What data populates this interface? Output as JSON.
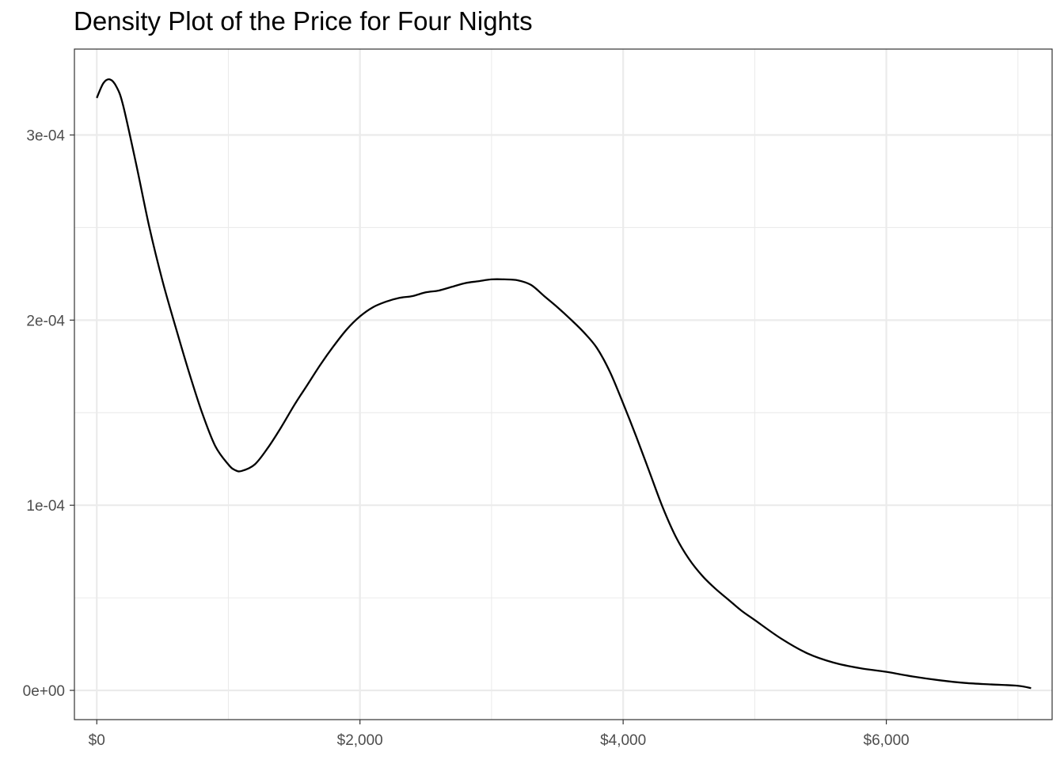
{
  "chart_data": {
    "type": "line",
    "title": "Density Plot of the Price for Four Nights",
    "xlabel": "",
    "ylabel": "",
    "xlim": [
      -170,
      7260
    ],
    "ylim": [
      -1.58e-05,
      0.0003464
    ],
    "x_ticks": [
      {
        "value": 0,
        "label": "$0"
      },
      {
        "value": 2000,
        "label": "$2,000"
      },
      {
        "value": 4000,
        "label": "$4,000"
      },
      {
        "value": 6000,
        "label": "$6,000"
      }
    ],
    "x_minor_ticks": [
      1000,
      3000,
      5000,
      7000
    ],
    "y_ticks": [
      {
        "value": 0,
        "label": "0e+00"
      },
      {
        "value": 0.0001,
        "label": "1e-04"
      },
      {
        "value": 0.0002,
        "label": "2e-04"
      },
      {
        "value": 0.0003,
        "label": "3e-04"
      }
    ],
    "y_minor_ticks": [
      5e-05,
      0.00015,
      0.00025
    ],
    "grid": true,
    "line_color": "#000000",
    "grid_color": "#ebebeb",
    "series": [
      {
        "x": [
          0,
          50,
          100,
          150,
          200,
          300,
          400,
          500,
          600,
          700,
          800,
          900,
          1000,
          1050,
          1100,
          1200,
          1300,
          1400,
          1500,
          1600,
          1700,
          1800,
          1900,
          2000,
          2100,
          2200,
          2300,
          2400,
          2500,
          2600,
          2700,
          2800,
          2900,
          3000,
          3100,
          3200,
          3300,
          3400,
          3500,
          3600,
          3700,
          3800,
          3900,
          4000,
          4100,
          4200,
          4300,
          4400,
          4500,
          4600,
          4700,
          4800,
          4900,
          5000,
          5200,
          5400,
          5600,
          5800,
          6000,
          6200,
          6400,
          6600,
          6800,
          7000,
          7100
        ],
        "y": [
          0.00032,
          0.000328,
          0.00033,
          0.000326,
          0.000316,
          0.000284,
          0.00025,
          0.000221,
          0.000196,
          0.000172,
          0.00015,
          0.000132,
          0.000122,
          0.000119,
          0.0001185,
          0.000122,
          0.000131,
          0.000142,
          0.000154,
          0.000165,
          0.000176,
          0.000186,
          0.000195,
          0.000202,
          0.000207,
          0.00021,
          0.000212,
          0.000213,
          0.000215,
          0.000216,
          0.000218,
          0.00022,
          0.000221,
          0.000222,
          0.000222,
          0.0002215,
          0.000219,
          0.000213,
          0.000207,
          0.0002005,
          0.0001935,
          0.000185,
          0.000172,
          0.000155,
          0.000137,
          0.000118,
          9.9e-05,
          8.3e-05,
          7.1e-05,
          6.2e-05,
          5.5e-05,
          4.9e-05,
          4.3e-05,
          3.8e-05,
          2.8e-05,
          2e-05,
          1.5e-05,
          1.2e-05,
          1e-05,
          7.5e-06,
          5.5e-06,
          4e-06,
          3.2e-06,
          2.5e-06,
          1.2e-06
        ]
      }
    ]
  }
}
